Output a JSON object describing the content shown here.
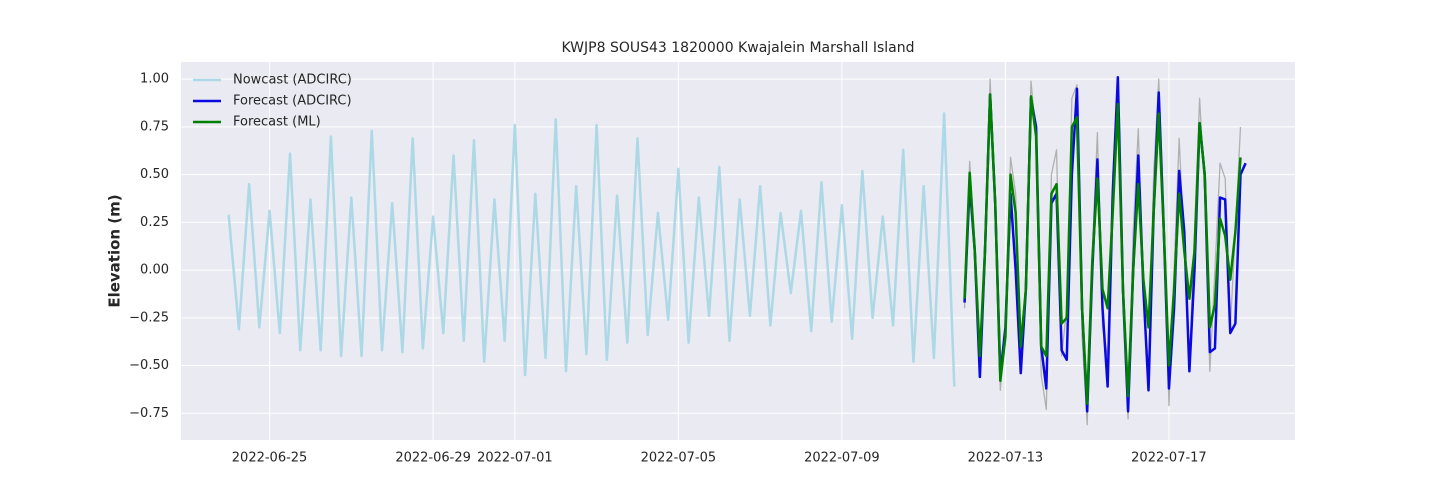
{
  "chart_data": {
    "type": "line",
    "title": "KWJP8 SOUS43 1820000 Kwajalein Marshall Island",
    "y_label": "Elevation (m)",
    "xlim": [
      "2022-06-22T20:00",
      "2022-07-20T02:00"
    ],
    "xticks": [
      "2022-06-25",
      "2022-06-29",
      "2022-07-01",
      "2022-07-05",
      "2022-07-09",
      "2022-07-13",
      "2022-07-17"
    ],
    "ylim": [
      -0.89,
      1.09
    ],
    "yticks": [
      {
        "value": 1,
        "label": "1.00"
      },
      0.75,
      {
        "value": 0.5,
        "label": "0.50"
      },
      0.25,
      {
        "value": 0,
        "label": "0.00"
      },
      {
        "value": -0.25,
        "label": "−0.25"
      },
      {
        "value": -0.5,
        "label": "−0.50"
      },
      {
        "value": -0.75,
        "label": "−0.75"
      }
    ],
    "grid": true,
    "legend": "upper left",
    "series": [
      {
        "color": "#b0b0b0",
        "x": [
          "2022-07-12T00:00",
          "2022-07-12T03:00",
          "2022-07-12T06:00",
          "2022-07-12T09:00",
          "2022-07-12T12:00",
          "2022-07-12T15:00",
          "2022-07-12T18:00",
          "2022-07-12T21:00",
          "2022-07-13T00:00",
          "2022-07-13T03:00",
          "2022-07-13T06:00",
          "2022-07-13T09:00",
          "2022-07-13T12:00",
          "2022-07-13T15:00",
          "2022-07-13T18:00",
          "2022-07-13T21:00",
          "2022-07-14T00:00",
          "2022-07-14T03:00",
          "2022-07-14T06:00",
          "2022-07-14T09:00",
          "2022-07-14T12:00",
          "2022-07-14T15:00",
          "2022-07-14T18:00",
          "2022-07-14T21:00",
          "2022-07-15T00:00",
          "2022-07-15T03:00",
          "2022-07-15T06:00",
          "2022-07-15T09:00",
          "2022-07-15T12:00",
          "2022-07-15T15:00",
          "2022-07-15T18:00",
          "2022-07-15T21:00",
          "2022-07-16T00:00",
          "2022-07-16T03:00",
          "2022-07-16T06:00",
          "2022-07-16T09:00",
          "2022-07-16T12:00",
          "2022-07-16T15:00",
          "2022-07-16T18:00",
          "2022-07-16T21:00",
          "2022-07-17T00:00",
          "2022-07-17T03:00",
          "2022-07-17T06:00",
          "2022-07-17T09:00",
          "2022-07-17T12:00",
          "2022-07-17T15:00",
          "2022-07-17T18:00",
          "2022-07-17T21:00",
          "2022-07-18T00:00",
          "2022-07-18T03:00",
          "2022-07-18T06:00",
          "2022-07-18T09:00",
          "2022-07-18T12:00",
          "2022-07-18T15:00",
          "2022-07-18T18:00",
          "2022-07-18T21:00"
        ],
        "values": [
          -0.2,
          0.57,
          0.15,
          -0.45,
          0.1,
          1.0,
          0.4,
          -0.63,
          -0.3,
          0.59,
          0.4,
          -0.5,
          -0.1,
          0.99,
          0.7,
          -0.55,
          -0.73,
          0.5,
          0.63,
          -0.45,
          -0.2,
          0.9,
          0.97,
          -0.35,
          -0.81,
          0.1,
          0.72,
          -0.3,
          -0.45,
          0.5,
          0.96,
          -0.2,
          -0.78,
          0.2,
          0.74,
          -0.1,
          -0.55,
          0.5,
          1.0,
          0.3,
          -0.71,
          0.0,
          0.69,
          0.1,
          -0.5,
          0.2,
          0.9,
          0.4,
          -0.53,
          0.0,
          0.56,
          0.48,
          -0.3,
          0.2,
          0.75,
          null
        ]
      },
      {
        "name": "Nowcast (ADCIRC)",
        "color": "#add8e6",
        "x": [
          "2022-06-24T00:00",
          "2022-06-24T06:00",
          "2022-06-24T12:00",
          "2022-06-24T18:00",
          "2022-06-25T00:00",
          "2022-06-25T06:00",
          "2022-06-25T12:00",
          "2022-06-25T18:00",
          "2022-06-26T00:00",
          "2022-06-26T06:00",
          "2022-06-26T12:00",
          "2022-06-26T18:00",
          "2022-06-27T00:00",
          "2022-06-27T06:00",
          "2022-06-27T12:00",
          "2022-06-27T18:00",
          "2022-06-28T00:00",
          "2022-06-28T06:00",
          "2022-06-28T12:00",
          "2022-06-28T18:00",
          "2022-06-29T00:00",
          "2022-06-29T06:00",
          "2022-06-29T12:00",
          "2022-06-29T18:00",
          "2022-06-30T00:00",
          "2022-06-30T06:00",
          "2022-06-30T12:00",
          "2022-06-30T18:00",
          "2022-07-01T00:00",
          "2022-07-01T06:00",
          "2022-07-01T12:00",
          "2022-07-01T18:00",
          "2022-07-02T00:00",
          "2022-07-02T06:00",
          "2022-07-02T12:00",
          "2022-07-02T18:00",
          "2022-07-03T00:00",
          "2022-07-03T06:00",
          "2022-07-03T12:00",
          "2022-07-03T18:00",
          "2022-07-04T00:00",
          "2022-07-04T06:00",
          "2022-07-04T12:00",
          "2022-07-04T18:00",
          "2022-07-05T00:00",
          "2022-07-05T06:00",
          "2022-07-05T12:00",
          "2022-07-05T18:00",
          "2022-07-06T00:00",
          "2022-07-06T06:00",
          "2022-07-06T12:00",
          "2022-07-06T18:00",
          "2022-07-07T00:00",
          "2022-07-07T06:00",
          "2022-07-07T12:00",
          "2022-07-07T18:00",
          "2022-07-08T00:00",
          "2022-07-08T06:00",
          "2022-07-08T12:00",
          "2022-07-08T18:00",
          "2022-07-09T00:00",
          "2022-07-09T06:00",
          "2022-07-09T12:00",
          "2022-07-09T18:00",
          "2022-07-10T00:00",
          "2022-07-10T06:00",
          "2022-07-10T12:00",
          "2022-07-10T18:00",
          "2022-07-11T00:00",
          "2022-07-11T06:00",
          "2022-07-11T12:00",
          "2022-07-11T18:00"
        ],
        "values": [
          0.29,
          -0.31,
          0.45,
          -0.3,
          0.31,
          -0.33,
          0.61,
          -0.42,
          0.37,
          -0.42,
          0.7,
          -0.45,
          0.38,
          -0.45,
          0.73,
          -0.42,
          0.35,
          -0.43,
          0.69,
          -0.41,
          0.28,
          -0.33,
          0.6,
          -0.37,
          0.68,
          -0.48,
          0.37,
          -0.37,
          0.76,
          -0.55,
          0.4,
          -0.46,
          0.79,
          -0.53,
          0.44,
          -0.44,
          0.76,
          -0.47,
          0.39,
          -0.38,
          0.69,
          -0.34,
          0.3,
          -0.26,
          0.53,
          -0.38,
          0.38,
          -0.24,
          0.54,
          -0.37,
          0.37,
          -0.24,
          0.44,
          -0.29,
          0.3,
          -0.12,
          0.31,
          -0.32,
          0.46,
          -0.27,
          0.34,
          -0.36,
          0.52,
          -0.25,
          0.28,
          -0.29,
          0.63,
          -0.48,
          0.44,
          -0.46,
          0.82,
          -0.61
        ]
      },
      {
        "name": "Forecast (ADCIRC)",
        "color": "#0a0ae0",
        "x": [
          "2022-07-12T00:00",
          "2022-07-12T03:00",
          "2022-07-12T06:00",
          "2022-07-12T09:00",
          "2022-07-12T12:00",
          "2022-07-12T15:00",
          "2022-07-12T18:00",
          "2022-07-12T21:00",
          "2022-07-13T00:00",
          "2022-07-13T03:00",
          "2022-07-13T06:00",
          "2022-07-13T09:00",
          "2022-07-13T12:00",
          "2022-07-13T15:00",
          "2022-07-13T18:00",
          "2022-07-13T21:00",
          "2022-07-14T00:00",
          "2022-07-14T03:00",
          "2022-07-14T06:00",
          "2022-07-14T09:00",
          "2022-07-14T12:00",
          "2022-07-14T15:00",
          "2022-07-14T18:00",
          "2022-07-14T21:00",
          "2022-07-15T00:00",
          "2022-07-15T03:00",
          "2022-07-15T06:00",
          "2022-07-15T09:00",
          "2022-07-15T12:00",
          "2022-07-15T15:00",
          "2022-07-15T18:00",
          "2022-07-15T21:00",
          "2022-07-16T00:00",
          "2022-07-16T03:00",
          "2022-07-16T06:00",
          "2022-07-16T09:00",
          "2022-07-16T12:00",
          "2022-07-16T15:00",
          "2022-07-16T18:00",
          "2022-07-16T21:00",
          "2022-07-17T00:00",
          "2022-07-17T03:00",
          "2022-07-17T06:00",
          "2022-07-17T09:00",
          "2022-07-17T12:00",
          "2022-07-17T15:00",
          "2022-07-17T18:00",
          "2022-07-17T21:00",
          "2022-07-18T00:00",
          "2022-07-18T03:00",
          "2022-07-18T06:00",
          "2022-07-18T09:00",
          "2022-07-18T12:00",
          "2022-07-18T15:00",
          "2022-07-18T18:00",
          "2022-07-18T21:00"
        ],
        "values": [
          -0.17,
          0.45,
          0.1,
          -0.56,
          0.1,
          0.92,
          0.35,
          -0.55,
          -0.3,
          0.4,
          0.0,
          -0.54,
          -0.1,
          0.9,
          0.75,
          -0.4,
          -0.62,
          0.35,
          0.4,
          -0.42,
          -0.47,
          0.5,
          0.95,
          -0.2,
          -0.74,
          0.0,
          0.58,
          -0.2,
          -0.61,
          0.4,
          1.01,
          -0.1,
          -0.74,
          0.0,
          0.6,
          -0.1,
          -0.63,
          0.3,
          0.93,
          0.2,
          -0.62,
          -0.2,
          0.52,
          0.2,
          -0.53,
          0.0,
          0.77,
          0.5,
          -0.43,
          -0.41,
          0.38,
          0.37,
          -0.33,
          -0.28,
          0.5,
          0.56
        ]
      },
      {
        "name": "Forecast (ML)",
        "color": "#008000",
        "x": [
          "2022-07-12T00:00",
          "2022-07-12T03:00",
          "2022-07-12T06:00",
          "2022-07-12T09:00",
          "2022-07-12T12:00",
          "2022-07-12T15:00",
          "2022-07-12T18:00",
          "2022-07-12T21:00",
          "2022-07-13T00:00",
          "2022-07-13T03:00",
          "2022-07-13T06:00",
          "2022-07-13T09:00",
          "2022-07-13T12:00",
          "2022-07-13T15:00",
          "2022-07-13T18:00",
          "2022-07-13T21:00",
          "2022-07-14T00:00",
          "2022-07-14T03:00",
          "2022-07-14T06:00",
          "2022-07-14T09:00",
          "2022-07-14T12:00",
          "2022-07-14T15:00",
          "2022-07-14T18:00",
          "2022-07-14T21:00",
          "2022-07-15T00:00",
          "2022-07-15T03:00",
          "2022-07-15T06:00",
          "2022-07-15T09:00",
          "2022-07-15T12:00",
          "2022-07-15T15:00",
          "2022-07-15T18:00",
          "2022-07-15T21:00",
          "2022-07-16T00:00",
          "2022-07-16T03:00",
          "2022-07-16T06:00",
          "2022-07-16T09:00",
          "2022-07-16T12:00",
          "2022-07-16T15:00",
          "2022-07-16T18:00",
          "2022-07-16T21:00",
          "2022-07-17T00:00",
          "2022-07-17T03:00",
          "2022-07-17T06:00",
          "2022-07-17T09:00",
          "2022-07-17T12:00",
          "2022-07-17T15:00",
          "2022-07-17T18:00",
          "2022-07-17T21:00",
          "2022-07-18T00:00",
          "2022-07-18T03:00",
          "2022-07-18T06:00",
          "2022-07-18T09:00",
          "2022-07-18T12:00",
          "2022-07-18T15:00",
          "2022-07-18T18:00",
          "2022-07-18T21:00"
        ],
        "values": [
          -0.15,
          0.51,
          0.1,
          -0.45,
          0.1,
          0.92,
          0.35,
          -0.58,
          -0.35,
          0.5,
          0.3,
          -0.4,
          -0.1,
          0.91,
          0.7,
          -0.4,
          -0.45,
          0.4,
          0.45,
          -0.28,
          -0.25,
          0.75,
          0.8,
          -0.2,
          -0.7,
          0.05,
          0.48,
          -0.1,
          -0.2,
          0.3,
          0.87,
          -0.1,
          -0.66,
          0.0,
          0.45,
          -0.05,
          -0.3,
          0.3,
          0.82,
          0.2,
          -0.5,
          -0.1,
          0.4,
          0.1,
          -0.15,
          0.1,
          0.77,
          0.5,
          -0.3,
          -0.18,
          0.27,
          0.18,
          -0.05,
          0.2,
          0.59,
          null
        ]
      }
    ]
  }
}
